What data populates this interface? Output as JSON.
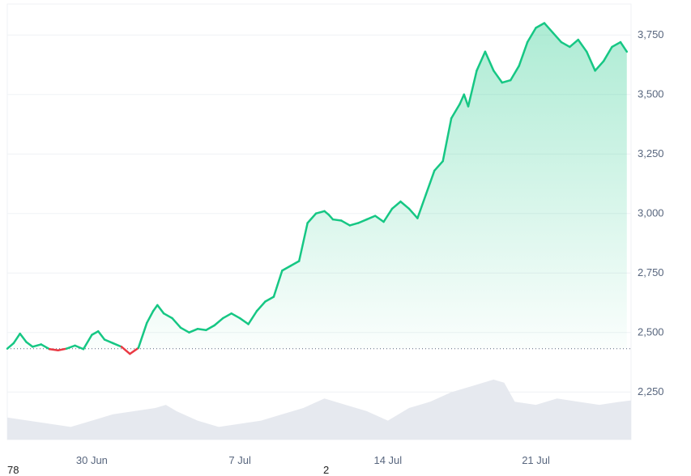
{
  "chart_data": {
    "type": "area",
    "title": "",
    "xlabel": "",
    "ylabel": "",
    "ylim": [
      2050,
      3880
    ],
    "y_ticks": [
      2250,
      2500,
      2750,
      3000,
      3250,
      3500,
      3750
    ],
    "y_tick_labels": [
      "2,250",
      "2,500",
      "2,750",
      "3,000",
      "3,250",
      "3,500",
      "3,750"
    ],
    "x_tick_labels": [
      {
        "label": "30 Jun",
        "day": 4
      },
      {
        "label": "7 Jul",
        "day": 11
      },
      {
        "label": "14 Jul",
        "day": 18
      },
      {
        "label": "21 Jul",
        "day": 25
      }
    ],
    "x_range_days": [
      0,
      29.5
    ],
    "baseline": 2432,
    "grid": true,
    "colors": {
      "up": "#16c784",
      "down": "#ea3943",
      "fill_top": "#16c784",
      "volume": "#e6e9ef",
      "grid": "#eff2f5",
      "label": "#58667e"
    },
    "series": [
      {
        "values_x_day": [
          0,
          0.3,
          0.6,
          0.9,
          1.2,
          1.6,
          2.0,
          2.4,
          2.8,
          3.2,
          3.6,
          4.0,
          4.3,
          4.6,
          5.0,
          5.4,
          5.8,
          6.2,
          6.6,
          6.9,
          7.1,
          7.4,
          7.8,
          8.2,
          8.6,
          9.0,
          9.4,
          9.8,
          10.2,
          10.6,
          11.0,
          11.4,
          11.8,
          12.2,
          12.6,
          13.0,
          13.4,
          13.8,
          14.2,
          14.6,
          15.0,
          15.2,
          15.4,
          15.8,
          16.2,
          16.6,
          17.0,
          17.4,
          17.8,
          18.2,
          18.6,
          19.0,
          19.4,
          19.8,
          20.2,
          20.6,
          21.0,
          21.4,
          21.6,
          21.8,
          22.2,
          22.6,
          23.0,
          23.4,
          23.8,
          24.2,
          24.6,
          25.0,
          25.4,
          25.8,
          26.2,
          26.6,
          27.0,
          27.4,
          27.8,
          28.2,
          28.6,
          29.0,
          29.3
        ],
        "values_y": [
          2432,
          2455,
          2495,
          2460,
          2440,
          2450,
          2430,
          2425,
          2432,
          2445,
          2430,
          2490,
          2505,
          2470,
          2455,
          2440,
          2410,
          2435,
          2540,
          2590,
          2615,
          2580,
          2560,
          2520,
          2500,
          2515,
          2510,
          2530,
          2560,
          2580,
          2560,
          2535,
          2590,
          2630,
          2650,
          2760,
          2780,
          2800,
          2960,
          3000,
          3010,
          2995,
          2975,
          2970,
          2950,
          2960,
          2975,
          2990,
          2965,
          3020,
          3050,
          3020,
          2980,
          3080,
          3180,
          3220,
          3400,
          3460,
          3500,
          3450,
          3600,
          3680,
          3600,
          3550,
          3560,
          3620,
          3720,
          3780,
          3800,
          3760,
          3720,
          3700,
          3730,
          3680,
          3600,
          3640,
          3700,
          3720,
          3680
        ],
        "name": ""
      }
    ],
    "volume": {
      "values_x_day": [
        0,
        1,
        2,
        3,
        4,
        5,
        6,
        7,
        7.5,
        8,
        9,
        10,
        11,
        12,
        13,
        14,
        15,
        16,
        17,
        18,
        19,
        20,
        21,
        22,
        23,
        23.5,
        24,
        25,
        26,
        27,
        28,
        29,
        29.5
      ],
      "values": [
        0.35,
        0.3,
        0.25,
        0.2,
        0.3,
        0.4,
        0.45,
        0.5,
        0.55,
        0.45,
        0.3,
        0.2,
        0.25,
        0.3,
        0.4,
        0.5,
        0.65,
        0.55,
        0.45,
        0.3,
        0.5,
        0.6,
        0.75,
        0.85,
        0.95,
        0.9,
        0.6,
        0.55,
        0.65,
        0.6,
        0.55,
        0.6,
        0.62
      ]
    }
  },
  "bottom_cut_text": {
    "left": "78",
    "middle": "2"
  }
}
